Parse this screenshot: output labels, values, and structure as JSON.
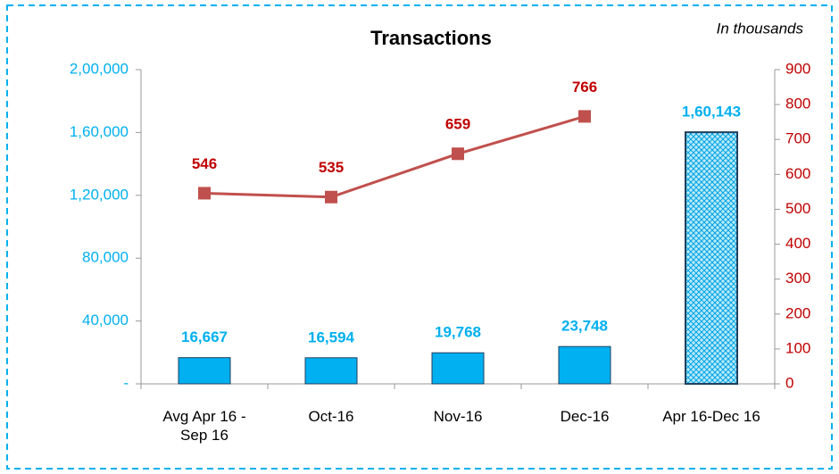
{
  "chart_data": {
    "type": "bar_line",
    "title": "Transactions",
    "annotation": "In thousands",
    "categories": [
      "Avg Apr 16 - Sep 16",
      "Oct-16",
      "Nov-16",
      "Dec-16",
      "Apr 16-Dec 16"
    ],
    "series": [
      {
        "name": "Transactions",
        "type": "bar",
        "color": "#00b0f0",
        "values": [
          16667,
          16594,
          19768,
          23748,
          160143
        ],
        "value_labels": [
          "16,667",
          "16,594",
          "19,768",
          "23,748",
          "1,60,143"
        ],
        "bar_styles": [
          "solid",
          "solid",
          "solid",
          "solid",
          "hatched"
        ]
      },
      {
        "name": "Transactions (in thousands)",
        "type": "line",
        "axis": "y2",
        "color": "#c0504d",
        "label_color": "#c00000",
        "values": [
          546,
          535,
          659,
          766,
          null
        ]
      }
    ],
    "ylim": [
      0,
      200000
    ],
    "yticks": [
      {
        "value": 0,
        "label": "-"
      },
      {
        "value": 40000,
        "label": "40,000"
      },
      {
        "value": 80000,
        "label": "80,000"
      },
      {
        "value": 120000,
        "label": "1,20,000"
      },
      {
        "value": 160000,
        "label": "1,60,000"
      },
      {
        "value": 200000,
        "label": "2,00,000"
      }
    ],
    "y2lim": [
      0,
      900
    ],
    "y2ticks": [
      0,
      100,
      200,
      300,
      400,
      500,
      600,
      700,
      800,
      900
    ],
    "grid": false
  }
}
